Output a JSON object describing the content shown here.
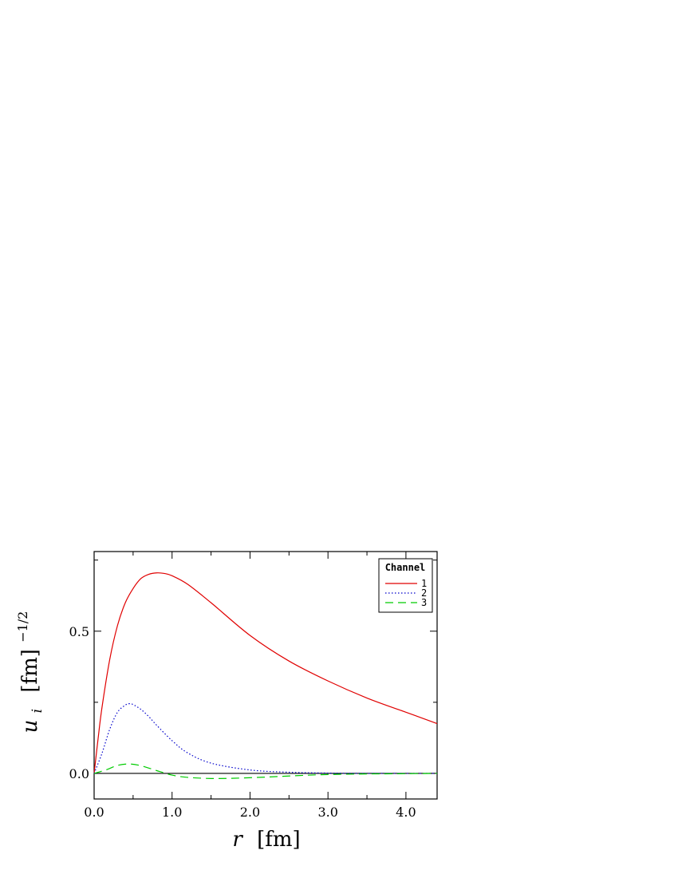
{
  "chart_data": {
    "type": "line",
    "xlabel": {
      "symbol": "r",
      "unit": "[fm]"
    },
    "ylabel": {
      "symbol": "u",
      "subscript": "i",
      "unit": "[fm]",
      "exponent": "−1/2"
    },
    "xlim": [
      0.0,
      4.4
    ],
    "ylim": [
      -0.09,
      0.78
    ],
    "x_ticks": [
      {
        "value": 0.0,
        "label": "0.0"
      },
      {
        "value": 1.0,
        "label": "1.0"
      },
      {
        "value": 2.0,
        "label": "2.0"
      },
      {
        "value": 3.0,
        "label": "3.0"
      },
      {
        "value": 4.0,
        "label": "4.0"
      }
    ],
    "y_ticks": [
      {
        "value": 0.0,
        "label": "0.0"
      },
      {
        "value": 0.5,
        "label": "0.5"
      }
    ],
    "zero_line": true,
    "legend": {
      "title": "Channel",
      "position": "top-right"
    },
    "series": [
      {
        "name": "1",
        "color": "#e00000",
        "dash": "solid",
        "points": [
          [
            0.0,
            0.0
          ],
          [
            0.05,
            0.12
          ],
          [
            0.1,
            0.23
          ],
          [
            0.2,
            0.4
          ],
          [
            0.3,
            0.52
          ],
          [
            0.4,
            0.6
          ],
          [
            0.5,
            0.65
          ],
          [
            0.6,
            0.685
          ],
          [
            0.7,
            0.7
          ],
          [
            0.8,
            0.705
          ],
          [
            0.9,
            0.703
          ],
          [
            1.0,
            0.695
          ],
          [
            1.2,
            0.665
          ],
          [
            1.5,
            0.6
          ],
          [
            2.0,
            0.485
          ],
          [
            2.5,
            0.395
          ],
          [
            3.0,
            0.325
          ],
          [
            3.5,
            0.265
          ],
          [
            4.0,
            0.215
          ],
          [
            4.4,
            0.175
          ]
        ]
      },
      {
        "name": "2",
        "color": "#0000cc",
        "dash": "dotted",
        "points": [
          [
            0.0,
            0.0
          ],
          [
            0.1,
            0.07
          ],
          [
            0.2,
            0.155
          ],
          [
            0.3,
            0.215
          ],
          [
            0.4,
            0.24
          ],
          [
            0.45,
            0.245
          ],
          [
            0.5,
            0.242
          ],
          [
            0.6,
            0.225
          ],
          [
            0.7,
            0.2
          ],
          [
            0.8,
            0.17
          ],
          [
            1.0,
            0.115
          ],
          [
            1.2,
            0.072
          ],
          [
            1.5,
            0.036
          ],
          [
            2.0,
            0.012
          ],
          [
            2.5,
            0.004
          ],
          [
            3.0,
            0.001
          ],
          [
            3.5,
            0.0
          ],
          [
            4.4,
            0.0
          ]
        ]
      },
      {
        "name": "3",
        "color": "#00cc00",
        "dash": "dashed",
        "points": [
          [
            0.0,
            0.0
          ],
          [
            0.15,
            0.012
          ],
          [
            0.3,
            0.028
          ],
          [
            0.45,
            0.033
          ],
          [
            0.6,
            0.027
          ],
          [
            0.8,
            0.01
          ],
          [
            1.0,
            -0.006
          ],
          [
            1.2,
            -0.014
          ],
          [
            1.5,
            -0.018
          ],
          [
            1.8,
            -0.017
          ],
          [
            2.2,
            -0.013
          ],
          [
            2.6,
            -0.008
          ],
          [
            3.0,
            -0.004
          ],
          [
            3.5,
            -0.002
          ],
          [
            4.0,
            -0.001
          ],
          [
            4.4,
            0.0
          ]
        ]
      }
    ]
  }
}
